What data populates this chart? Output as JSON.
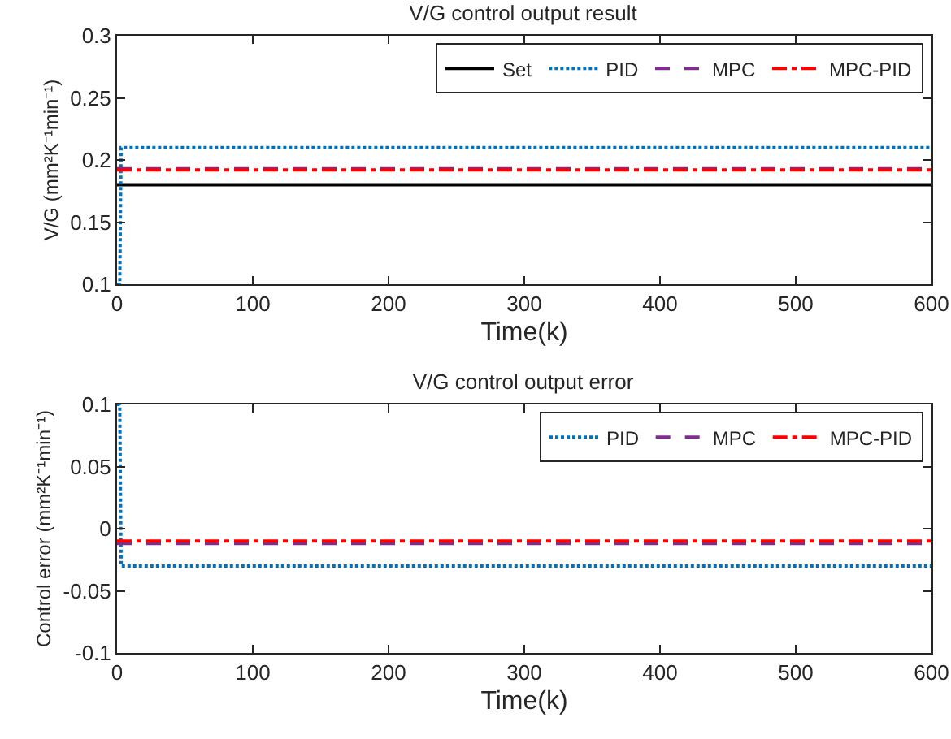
{
  "chart_data": [
    {
      "type": "line",
      "title": "V/G control output result",
      "xlabel": "Time(k)",
      "ylabel": "V/G (mm²K⁻¹min⁻¹)",
      "xlim": [
        0,
        600
      ],
      "xticks": [
        0,
        100,
        200,
        300,
        400,
        500,
        600
      ],
      "ylim": [
        0.1,
        0.3
      ],
      "yticks": [
        0.1,
        0.15,
        0.2,
        0.25,
        0.3
      ],
      "grid": false,
      "legend": "top right",
      "marker": "none",
      "series": [
        {
          "name": "Set",
          "color": "#000000",
          "line_style": "solid",
          "x": [
            0,
            600
          ],
          "values": [
            0.18,
            0.18
          ]
        },
        {
          "name": "PID",
          "color": "#0072bd",
          "line_style": "dotted",
          "x": [
            0,
            2,
            3,
            600
          ],
          "values": [
            0.1,
            0.1,
            0.21,
            0.21
          ]
        },
        {
          "name": "MPC",
          "color": "#7e2f8e",
          "line_style": "dashed",
          "x": [
            0,
            600
          ],
          "values": [
            0.193,
            0.193
          ]
        },
        {
          "name": "MPC-PID",
          "color": "#ff0000",
          "line_style": "dashdot",
          "x": [
            0,
            600
          ],
          "values": [
            0.192,
            0.192
          ]
        }
      ]
    },
    {
      "type": "line",
      "title": "V/G control output error",
      "xlabel": "Time(k)",
      "ylabel": "Control error (mm²K⁻¹min⁻¹)",
      "xlim": [
        0,
        600
      ],
      "xticks": [
        0,
        100,
        200,
        300,
        400,
        500,
        600
      ],
      "ylim": [
        -0.1,
        0.1
      ],
      "yticks": [
        -0.1,
        -0.05,
        0,
        0.05,
        0.1
      ],
      "grid": false,
      "legend": "top right",
      "marker": "none",
      "series": [
        {
          "name": "PID",
          "color": "#0072bd",
          "line_style": "dotted",
          "x": [
            0,
            2,
            3,
            600
          ],
          "values": [
            0.1,
            0.1,
            -0.03,
            -0.03
          ]
        },
        {
          "name": "MPC",
          "color": "#7e2f8e",
          "line_style": "dashed",
          "x": [
            0,
            600
          ],
          "values": [
            -0.012,
            -0.012
          ]
        },
        {
          "name": "MPC-PID",
          "color": "#ff0000",
          "line_style": "dashdot",
          "x": [
            0,
            600
          ],
          "values": [
            -0.01,
            -0.01
          ]
        }
      ]
    }
  ]
}
